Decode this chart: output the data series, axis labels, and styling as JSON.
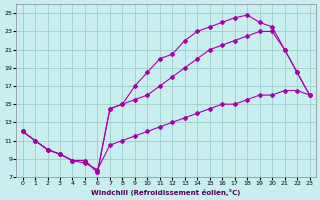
{
  "xlabel": "Windchill (Refroidissement éolien,°C)",
  "bg_color": "#c8eef0",
  "grid_color": "#a0cccc",
  "line_color": "#aa00aa",
  "xlim": [
    -0.5,
    23.5
  ],
  "ylim": [
    7,
    26
  ],
  "xticks": [
    0,
    1,
    2,
    3,
    4,
    5,
    6,
    7,
    8,
    9,
    10,
    11,
    12,
    13,
    14,
    15,
    16,
    17,
    18,
    19,
    20,
    21,
    22,
    23
  ],
  "yticks": [
    7,
    9,
    11,
    13,
    15,
    17,
    19,
    21,
    23,
    25
  ],
  "curve1_x": [
    0,
    1,
    2,
    3,
    4,
    5,
    6,
    7,
    8,
    9,
    10,
    11,
    12,
    13,
    14,
    15,
    16,
    17,
    18,
    19,
    20,
    21,
    22,
    23
  ],
  "curve1_y": [
    12,
    11,
    10,
    9.5,
    8.8,
    8.8,
    7.5,
    14.5,
    15,
    17,
    18.5,
    20,
    20.5,
    22,
    23,
    23.5,
    24,
    24.5,
    24.8,
    24,
    23.5,
    21,
    18.5,
    16
  ],
  "curve2_x": [
    0,
    1,
    2,
    3,
    4,
    5,
    6,
    7,
    8,
    9,
    10,
    11,
    12,
    13,
    14,
    15,
    16,
    17,
    18,
    19,
    20,
    21,
    22,
    23
  ],
  "curve2_y": [
    12,
    11,
    10,
    9.5,
    8.8,
    8.8,
    7.5,
    14.5,
    15,
    15.5,
    16,
    17,
    18,
    19,
    20,
    21,
    21.5,
    22,
    22.5,
    23,
    23,
    21,
    18.5,
    16
  ],
  "curve3_x": [
    0,
    1,
    2,
    3,
    4,
    5,
    6,
    7,
    8,
    9,
    10,
    11,
    12,
    13,
    14,
    15,
    16,
    17,
    18,
    19,
    20,
    21,
    22,
    23
  ],
  "curve3_y": [
    12,
    11,
    10,
    9.5,
    8.8,
    8.5,
    7.8,
    10.5,
    11,
    11.5,
    12,
    12.5,
    13,
    13.5,
    14,
    14.5,
    15,
    15,
    15.5,
    16,
    16,
    16.5,
    16.5,
    16
  ]
}
